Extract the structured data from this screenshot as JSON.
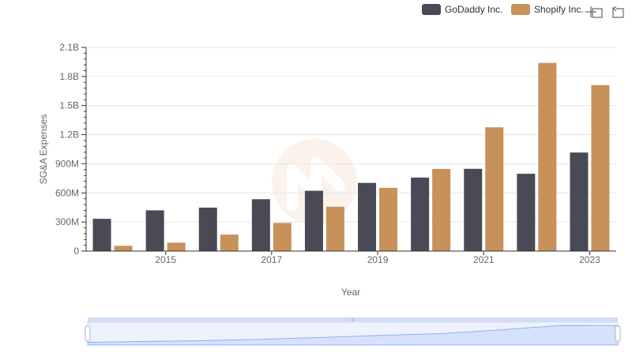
{
  "chart_data": {
    "type": "bar",
    "xlabel": "Year",
    "ylabel": "SG&A Expenses",
    "ylim": [
      0,
      2100000000
    ],
    "y_ticks": [
      {
        "value": 0,
        "label": "0"
      },
      {
        "value": 300000000,
        "label": "300M"
      },
      {
        "value": 600000000,
        "label": "600M"
      },
      {
        "value": 900000000,
        "label": "900M"
      },
      {
        "value": 1200000000,
        "label": "1.2B"
      },
      {
        "value": 1500000000,
        "label": "1.5B"
      },
      {
        "value": 1800000000,
        "label": "1.8B"
      },
      {
        "value": 2100000000,
        "label": "2.1B"
      }
    ],
    "categories": [
      2014,
      2015,
      2016,
      2017,
      2018,
      2019,
      2020,
      2021,
      2022,
      2023
    ],
    "x_tick_labels": [
      "2015",
      "2017",
      "2019",
      "2021",
      "2023"
    ],
    "series": [
      {
        "name": "GoDaddy Inc.",
        "color": "#4a4a56",
        "values": [
          333000000,
          420000000,
          448000000,
          535000000,
          622000000,
          703000000,
          758000000,
          848000000,
          797000000,
          1016000000
        ]
      },
      {
        "name": "Shopify Inc.",
        "color": "#c8915a",
        "values": [
          55000000,
          87000000,
          170000000,
          290000000,
          457000000,
          652000000,
          847000000,
          1276000000,
          1940000000,
          1711000000
        ]
      }
    ]
  },
  "toolbar": {
    "zoom_icon": "crosshair-icon",
    "reset_icon": "restore-icon"
  },
  "colors": {
    "grid": "#e6e6e6",
    "axis": "#333333",
    "slider_fill": "#d6e2fb",
    "slider_line": "#8fb0f7",
    "slider_bar": "#d3dcf5"
  }
}
